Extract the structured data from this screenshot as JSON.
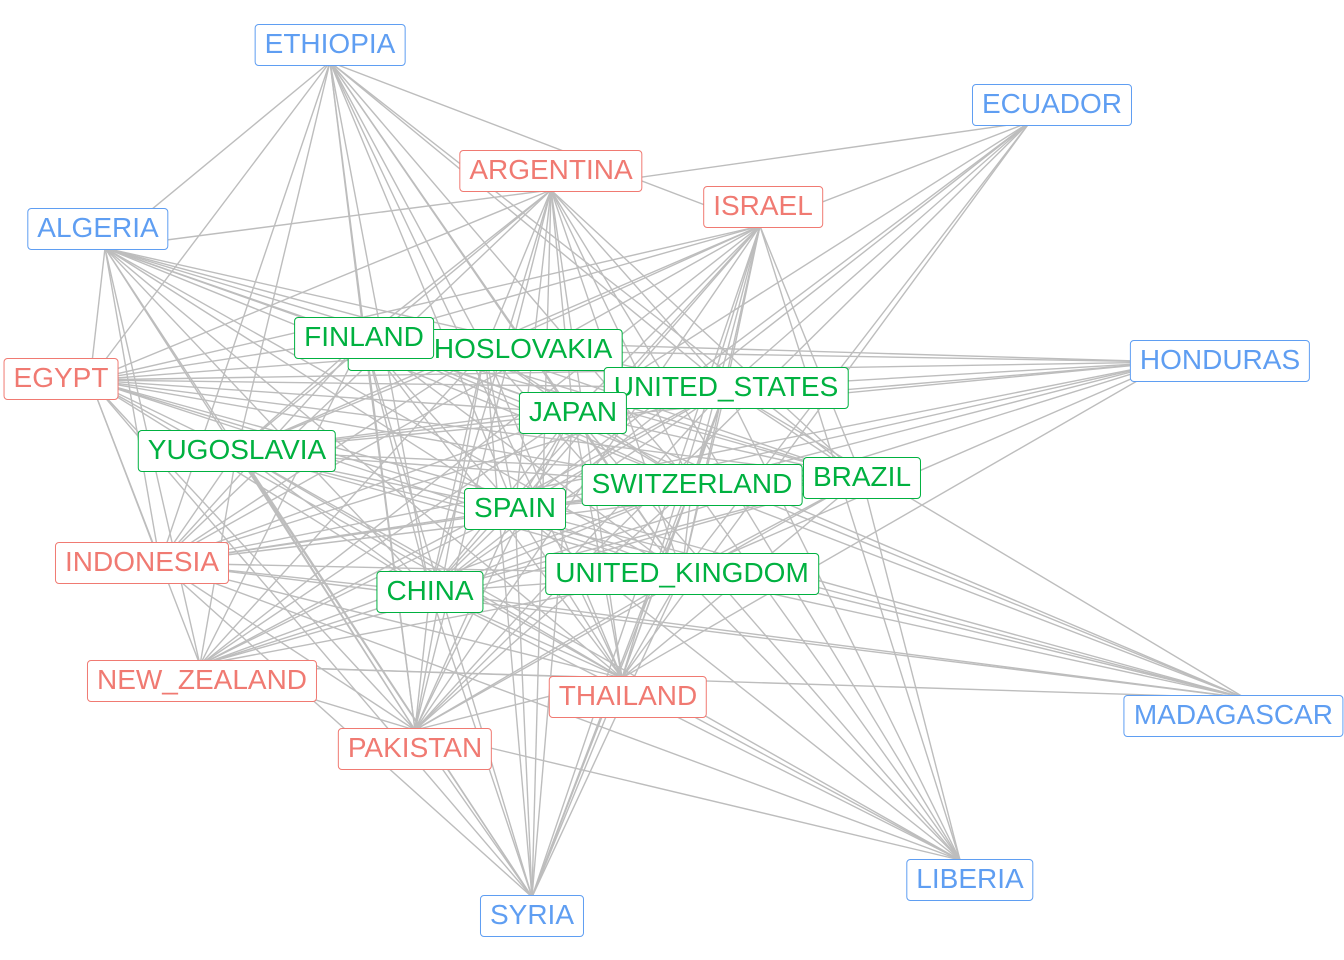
{
  "colors": {
    "core": "#00b140",
    "semi": "#f07a72",
    "periph": "#5f9ef2",
    "edge": "#bdbdbd"
  },
  "nodes": [
    {
      "id": "ETHIOPIA",
      "label": "ETHIOPIA",
      "group": "periph"
    },
    {
      "id": "ECUADOR",
      "label": "ECUADOR",
      "group": "periph"
    },
    {
      "id": "ALGERIA",
      "label": "ALGERIA",
      "group": "periph"
    },
    {
      "id": "HONDURAS",
      "label": "HONDURAS",
      "group": "periph"
    },
    {
      "id": "MADAGASCAR",
      "label": "MADAGASCAR",
      "group": "periph"
    },
    {
      "id": "LIBERIA",
      "label": "LIBERIA",
      "group": "periph"
    },
    {
      "id": "SYRIA",
      "label": "SYRIA",
      "group": "periph"
    },
    {
      "id": "ARGENTINA",
      "label": "ARGENTINA",
      "group": "semi"
    },
    {
      "id": "ISRAEL",
      "label": "ISRAEL",
      "group": "semi"
    },
    {
      "id": "EGYPT",
      "label": "EGYPT",
      "group": "semi"
    },
    {
      "id": "INDONESIA",
      "label": "INDONESIA",
      "group": "semi"
    },
    {
      "id": "NEW_ZEALAND",
      "label": "NEW_ZEALAND",
      "group": "semi"
    },
    {
      "id": "PAKISTAN",
      "label": "PAKISTAN",
      "group": "semi"
    },
    {
      "id": "THAILAND",
      "label": "THAILAND",
      "group": "semi"
    },
    {
      "id": "CZECHOSLOVAKIA",
      "label": "CZECHOSLOVAKIA",
      "group": "core"
    },
    {
      "id": "FINLAND",
      "label": "FINLAND",
      "group": "core"
    },
    {
      "id": "UNITED_STATES",
      "label": "UNITED_STATES",
      "group": "core"
    },
    {
      "id": "JAPAN",
      "label": "JAPAN",
      "group": "core"
    },
    {
      "id": "YUGOSLAVIA",
      "label": "YUGOSLAVIA",
      "group": "core"
    },
    {
      "id": "BRAZIL",
      "label": "BRAZIL",
      "group": "core"
    },
    {
      "id": "SWITZERLAND",
      "label": "SWITZERLAND",
      "group": "core"
    },
    {
      "id": "SPAIN",
      "label": "SPAIN",
      "group": "core"
    },
    {
      "id": "CHINA",
      "label": "CHINA",
      "group": "core"
    },
    {
      "id": "UNITED_KINGDOM",
      "label": "UNITED_KINGDOM",
      "group": "core"
    }
  ],
  "edges": [
    [
      "ETHIOPIA",
      "ISRAEL"
    ],
    [
      "ETHIOPIA",
      "ALGERIA"
    ],
    [
      "ETHIOPIA",
      "FINLAND"
    ],
    [
      "ETHIOPIA",
      "CZECHOSLOVAKIA"
    ],
    [
      "ETHIOPIA",
      "JAPAN"
    ],
    [
      "ETHIOPIA",
      "SWITZERLAND"
    ],
    [
      "ETHIOPIA",
      "SPAIN"
    ],
    [
      "ETHIOPIA",
      "CHINA"
    ],
    [
      "ETHIOPIA",
      "UNITED_KINGDOM"
    ],
    [
      "ETHIOPIA",
      "BRAZIL"
    ],
    [
      "ETHIOPIA",
      "UNITED_STATES"
    ],
    [
      "ETHIOPIA",
      "YUGOSLAVIA"
    ],
    [
      "ETHIOPIA",
      "THAILAND"
    ],
    [
      "ETHIOPIA",
      "PAKISTAN"
    ],
    [
      "ETHIOPIA",
      "EGYPT"
    ],
    [
      "ETHIOPIA",
      "INDONESIA"
    ],
    [
      "ECUADOR",
      "ARGENTINA"
    ],
    [
      "ECUADOR",
      "ISRAEL"
    ],
    [
      "ECUADOR",
      "UNITED_STATES"
    ],
    [
      "ECUADOR",
      "JAPAN"
    ],
    [
      "ECUADOR",
      "SPAIN"
    ],
    [
      "ECUADOR",
      "CHINA"
    ],
    [
      "ECUADOR",
      "UNITED_KINGDOM"
    ],
    [
      "ECUADOR",
      "THAILAND"
    ],
    [
      "ECUADOR",
      "PAKISTAN"
    ],
    [
      "ALGERIA",
      "ARGENTINA"
    ],
    [
      "ALGERIA",
      "FINLAND"
    ],
    [
      "ALGERIA",
      "CZECHOSLOVAKIA"
    ],
    [
      "ALGERIA",
      "JAPAN"
    ],
    [
      "ALGERIA",
      "UNITED_STATES"
    ],
    [
      "ALGERIA",
      "SWITZERLAND"
    ],
    [
      "ALGERIA",
      "BRAZIL"
    ],
    [
      "ALGERIA",
      "SPAIN"
    ],
    [
      "ALGERIA",
      "CHINA"
    ],
    [
      "ALGERIA",
      "UNITED_KINGDOM"
    ],
    [
      "ALGERIA",
      "NEW_ZEALAND"
    ],
    [
      "ALGERIA",
      "PAKISTAN"
    ],
    [
      "ALGERIA",
      "THAILAND"
    ],
    [
      "ALGERIA",
      "INDONESIA"
    ],
    [
      "ALGERIA",
      "EGYPT"
    ],
    [
      "ARGENTINA",
      "FINLAND"
    ],
    [
      "ARGENTINA",
      "CZECHOSLOVAKIA"
    ],
    [
      "ARGENTINA",
      "JAPAN"
    ],
    [
      "ARGENTINA",
      "UNITED_STATES"
    ],
    [
      "ARGENTINA",
      "SWITZERLAND"
    ],
    [
      "ARGENTINA",
      "SPAIN"
    ],
    [
      "ARGENTINA",
      "CHINA"
    ],
    [
      "ARGENTINA",
      "UNITED_KINGDOM"
    ],
    [
      "ARGENTINA",
      "BRAZIL"
    ],
    [
      "ARGENTINA",
      "YUGOSLAVIA"
    ],
    [
      "ARGENTINA",
      "THAILAND"
    ],
    [
      "ARGENTINA",
      "PAKISTAN"
    ],
    [
      "ARGENTINA",
      "INDONESIA"
    ],
    [
      "ARGENTINA",
      "SYRIA"
    ],
    [
      "ARGENTINA",
      "LIBERIA"
    ],
    [
      "ARGENTINA",
      "EGYPT"
    ],
    [
      "ISRAEL",
      "FINLAND"
    ],
    [
      "ISRAEL",
      "CZECHOSLOVAKIA"
    ],
    [
      "ISRAEL",
      "JAPAN"
    ],
    [
      "ISRAEL",
      "UNITED_STATES"
    ],
    [
      "ISRAEL",
      "SWITZERLAND"
    ],
    [
      "ISRAEL",
      "SPAIN"
    ],
    [
      "ISRAEL",
      "CHINA"
    ],
    [
      "ISRAEL",
      "UNITED_KINGDOM"
    ],
    [
      "ISRAEL",
      "BRAZIL"
    ],
    [
      "ISRAEL",
      "YUGOSLAVIA"
    ],
    [
      "ISRAEL",
      "THAILAND"
    ],
    [
      "ISRAEL",
      "PAKISTAN"
    ],
    [
      "ISRAEL",
      "SYRIA"
    ],
    [
      "ISRAEL",
      "LIBERIA"
    ],
    [
      "ISRAEL",
      "INDONESIA"
    ],
    [
      "ISRAEL",
      "NEW_ZEALAND"
    ],
    [
      "ISRAEL",
      "EGYPT"
    ],
    [
      "EGYPT",
      "FINLAND"
    ],
    [
      "EGYPT",
      "CZECHOSLOVAKIA"
    ],
    [
      "EGYPT",
      "JAPAN"
    ],
    [
      "EGYPT",
      "UNITED_STATES"
    ],
    [
      "EGYPT",
      "SWITZERLAND"
    ],
    [
      "EGYPT",
      "SPAIN"
    ],
    [
      "EGYPT",
      "CHINA"
    ],
    [
      "EGYPT",
      "UNITED_KINGDOM"
    ],
    [
      "EGYPT",
      "BRAZIL"
    ],
    [
      "EGYPT",
      "YUGOSLAVIA"
    ],
    [
      "EGYPT",
      "HONDURAS"
    ],
    [
      "EGYPT",
      "INDONESIA"
    ],
    [
      "EGYPT",
      "NEW_ZEALAND"
    ],
    [
      "EGYPT",
      "PAKISTAN"
    ],
    [
      "EGYPT",
      "THAILAND"
    ],
    [
      "EGYPT",
      "SYRIA"
    ],
    [
      "EGYPT",
      "MADAGASCAR"
    ],
    [
      "HONDURAS",
      "CZECHOSLOVAKIA"
    ],
    [
      "HONDURAS",
      "UNITED_STATES"
    ],
    [
      "HONDURAS",
      "JAPAN"
    ],
    [
      "HONDURAS",
      "SPAIN"
    ],
    [
      "HONDURAS",
      "CHINA"
    ],
    [
      "HONDURAS",
      "UNITED_KINGDOM"
    ],
    [
      "HONDURAS",
      "YUGOSLAVIA"
    ],
    [
      "HONDURAS",
      "INDONESIA"
    ],
    [
      "HONDURAS",
      "SWITZERLAND"
    ],
    [
      "HONDURAS",
      "THAILAND"
    ],
    [
      "HONDURAS",
      "FINLAND"
    ],
    [
      "MADAGASCAR",
      "UNITED_STATES"
    ],
    [
      "MADAGASCAR",
      "SWITZERLAND"
    ],
    [
      "MADAGASCAR",
      "SPAIN"
    ],
    [
      "MADAGASCAR",
      "CHINA"
    ],
    [
      "MADAGASCAR",
      "UNITED_KINGDOM"
    ],
    [
      "MADAGASCAR",
      "JAPAN"
    ],
    [
      "MADAGASCAR",
      "YUGOSLAVIA"
    ],
    [
      "MADAGASCAR",
      "INDONESIA"
    ],
    [
      "MADAGASCAR",
      "NEW_ZEALAND"
    ],
    [
      "MADAGASCAR",
      "FINLAND"
    ],
    [
      "LIBERIA",
      "UNITED_STATES"
    ],
    [
      "LIBERIA",
      "JAPAN"
    ],
    [
      "LIBERIA",
      "SPAIN"
    ],
    [
      "LIBERIA",
      "SWITZERLAND"
    ],
    [
      "LIBERIA",
      "UNITED_KINGDOM"
    ],
    [
      "LIBERIA",
      "CHINA"
    ],
    [
      "LIBERIA",
      "YUGOSLAVIA"
    ],
    [
      "LIBERIA",
      "PAKISTAN"
    ],
    [
      "LIBERIA",
      "BRAZIL"
    ],
    [
      "LIBERIA",
      "INDONESIA"
    ],
    [
      "LIBERIA",
      "THAILAND"
    ],
    [
      "SYRIA",
      "CHINA"
    ],
    [
      "SYRIA",
      "SPAIN"
    ],
    [
      "SYRIA",
      "JAPAN"
    ],
    [
      "SYRIA",
      "UNITED_STATES"
    ],
    [
      "SYRIA",
      "UNITED_KINGDOM"
    ],
    [
      "SYRIA",
      "FINLAND"
    ],
    [
      "SYRIA",
      "CZECHOSLOVAKIA"
    ],
    [
      "SYRIA",
      "YUGOSLAVIA"
    ],
    [
      "SYRIA",
      "INDONESIA"
    ],
    [
      "SYRIA",
      "PAKISTAN"
    ],
    [
      "SYRIA",
      "THAILAND"
    ],
    [
      "SYRIA",
      "SWITZERLAND"
    ],
    [
      "SYRIA",
      "ALGERIA"
    ],
    [
      "INDONESIA",
      "FINLAND"
    ],
    [
      "INDONESIA",
      "CZECHOSLOVAKIA"
    ],
    [
      "INDONESIA",
      "JAPAN"
    ],
    [
      "INDONESIA",
      "UNITED_STATES"
    ],
    [
      "INDONESIA",
      "SWITZERLAND"
    ],
    [
      "INDONESIA",
      "SPAIN"
    ],
    [
      "INDONESIA",
      "CHINA"
    ],
    [
      "INDONESIA",
      "UNITED_KINGDOM"
    ],
    [
      "INDONESIA",
      "BRAZIL"
    ],
    [
      "INDONESIA",
      "YUGOSLAVIA"
    ],
    [
      "INDONESIA",
      "THAILAND"
    ],
    [
      "INDONESIA",
      "PAKISTAN"
    ],
    [
      "NEW_ZEALAND",
      "FINLAND"
    ],
    [
      "NEW_ZEALAND",
      "CZECHOSLOVAKIA"
    ],
    [
      "NEW_ZEALAND",
      "JAPAN"
    ],
    [
      "NEW_ZEALAND",
      "UNITED_STATES"
    ],
    [
      "NEW_ZEALAND",
      "SWITZERLAND"
    ],
    [
      "NEW_ZEALAND",
      "SPAIN"
    ],
    [
      "NEW_ZEALAND",
      "CHINA"
    ],
    [
      "NEW_ZEALAND",
      "UNITED_KINGDOM"
    ],
    [
      "NEW_ZEALAND",
      "BRAZIL"
    ],
    [
      "NEW_ZEALAND",
      "YUGOSLAVIA"
    ],
    [
      "NEW_ZEALAND",
      "THAILAND"
    ],
    [
      "NEW_ZEALAND",
      "PAKISTAN"
    ],
    [
      "PAKISTAN",
      "FINLAND"
    ],
    [
      "PAKISTAN",
      "CZECHOSLOVAKIA"
    ],
    [
      "PAKISTAN",
      "JAPAN"
    ],
    [
      "PAKISTAN",
      "UNITED_STATES"
    ],
    [
      "PAKISTAN",
      "SWITZERLAND"
    ],
    [
      "PAKISTAN",
      "SPAIN"
    ],
    [
      "PAKISTAN",
      "CHINA"
    ],
    [
      "PAKISTAN",
      "UNITED_KINGDOM"
    ],
    [
      "PAKISTAN",
      "BRAZIL"
    ],
    [
      "PAKISTAN",
      "YUGOSLAVIA"
    ],
    [
      "PAKISTAN",
      "THAILAND"
    ],
    [
      "THAILAND",
      "FINLAND"
    ],
    [
      "THAILAND",
      "CZECHOSLOVAKIA"
    ],
    [
      "THAILAND",
      "JAPAN"
    ],
    [
      "THAILAND",
      "UNITED_STATES"
    ],
    [
      "THAILAND",
      "SWITZERLAND"
    ],
    [
      "THAILAND",
      "SPAIN"
    ],
    [
      "THAILAND",
      "CHINA"
    ],
    [
      "THAILAND",
      "UNITED_KINGDOM"
    ],
    [
      "THAILAND",
      "BRAZIL"
    ],
    [
      "THAILAND",
      "YUGOSLAVIA"
    ],
    [
      "FINLAND",
      "CZECHOSLOVAKIA"
    ],
    [
      "FINLAND",
      "JAPAN"
    ],
    [
      "FINLAND",
      "UNITED_STATES"
    ],
    [
      "FINLAND",
      "SWITZERLAND"
    ],
    [
      "FINLAND",
      "SPAIN"
    ],
    [
      "FINLAND",
      "CHINA"
    ],
    [
      "FINLAND",
      "UNITED_KINGDOM"
    ],
    [
      "FINLAND",
      "BRAZIL"
    ],
    [
      "FINLAND",
      "YUGOSLAVIA"
    ],
    [
      "CZECHOSLOVAKIA",
      "JAPAN"
    ],
    [
      "CZECHOSLOVAKIA",
      "UNITED_STATES"
    ],
    [
      "CZECHOSLOVAKIA",
      "SWITZERLAND"
    ],
    [
      "CZECHOSLOVAKIA",
      "SPAIN"
    ],
    [
      "CZECHOSLOVAKIA",
      "CHINA"
    ],
    [
      "CZECHOSLOVAKIA",
      "UNITED_KINGDOM"
    ],
    [
      "CZECHOSLOVAKIA",
      "BRAZIL"
    ],
    [
      "CZECHOSLOVAKIA",
      "YUGOSLAVIA"
    ],
    [
      "UNITED_STATES",
      "JAPAN"
    ],
    [
      "UNITED_STATES",
      "SWITZERLAND"
    ],
    [
      "UNITED_STATES",
      "SPAIN"
    ],
    [
      "UNITED_STATES",
      "CHINA"
    ],
    [
      "UNITED_STATES",
      "UNITED_KINGDOM"
    ],
    [
      "UNITED_STATES",
      "BRAZIL"
    ],
    [
      "UNITED_STATES",
      "YUGOSLAVIA"
    ],
    [
      "JAPAN",
      "SWITZERLAND"
    ],
    [
      "JAPAN",
      "SPAIN"
    ],
    [
      "JAPAN",
      "CHINA"
    ],
    [
      "JAPAN",
      "UNITED_KINGDOM"
    ],
    [
      "JAPAN",
      "BRAZIL"
    ],
    [
      "JAPAN",
      "YUGOSLAVIA"
    ],
    [
      "YUGOSLAVIA",
      "SWITZERLAND"
    ],
    [
      "YUGOSLAVIA",
      "SPAIN"
    ],
    [
      "YUGOSLAVIA",
      "CHINA"
    ],
    [
      "YUGOSLAVIA",
      "UNITED_KINGDOM"
    ],
    [
      "YUGOSLAVIA",
      "BRAZIL"
    ],
    [
      "BRAZIL",
      "SWITZERLAND"
    ],
    [
      "BRAZIL",
      "SPAIN"
    ],
    [
      "BRAZIL",
      "CHINA"
    ],
    [
      "BRAZIL",
      "UNITED_KINGDOM"
    ],
    [
      "SWITZERLAND",
      "SPAIN"
    ],
    [
      "SWITZERLAND",
      "CHINA"
    ],
    [
      "SWITZERLAND",
      "UNITED_KINGDOM"
    ],
    [
      "SPAIN",
      "CHINA"
    ],
    [
      "SPAIN",
      "UNITED_KINGDOM"
    ],
    [
      "CHINA",
      "UNITED_KINGDOM"
    ]
  ]
}
